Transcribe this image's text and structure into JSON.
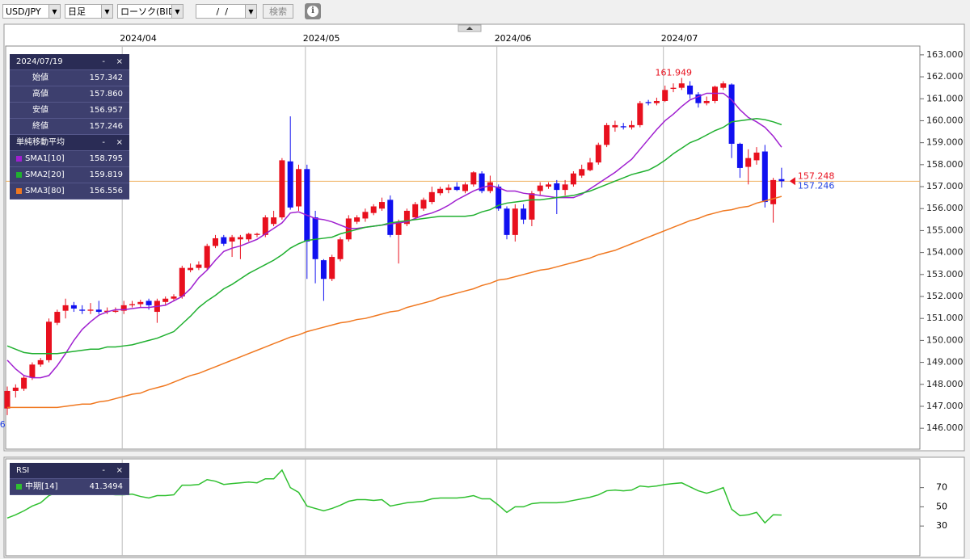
{
  "toolbar": {
    "pair": "USD/JPY",
    "period": "日足",
    "chart_kind": "ローソク(BID)",
    "date": " /  /",
    "search": "検索"
  },
  "info_panel": {
    "date": "2024/07/19",
    "minimize": "-",
    "close": "×",
    "rows": [
      {
        "label": "始値",
        "value": "157.342"
      },
      {
        "label": "高値",
        "value": "157.860"
      },
      {
        "label": "安値",
        "value": "156.957"
      },
      {
        "label": "終値",
        "value": "157.246"
      }
    ],
    "sma_title": "単純移動平均",
    "sma_minimize": "-",
    "sma_close": "×"
  },
  "rsi_panel": {
    "minimize": "-",
    "close": "×"
  },
  "chart_data": [
    {
      "type": "candlestick",
      "categories": [
        null,
        null,
        null,
        null,
        null,
        null,
        null,
        null,
        null,
        null,
        null,
        null,
        null,
        null,
        "2024/04",
        null,
        null,
        null,
        null,
        null,
        null,
        null,
        null,
        null,
        null,
        null,
        null,
        null,
        null,
        null,
        null,
        null,
        null,
        null,
        null,
        null,
        "2024/05",
        null,
        null,
        null,
        null,
        null,
        null,
        null,
        null,
        null,
        null,
        null,
        null,
        null,
        null,
        null,
        null,
        null,
        null,
        null,
        null,
        null,
        null,
        "2024/06",
        null,
        null,
        null,
        null,
        null,
        null,
        null,
        null,
        null,
        null,
        null,
        null,
        null,
        null,
        null,
        null,
        null,
        null,
        null,
        "2024/07",
        null,
        null,
        null,
        null,
        null,
        null,
        null,
        null,
        null,
        null,
        null,
        null,
        null,
        null
      ],
      "open": [
        146.9,
        147.7,
        147.8,
        148.3,
        148.9,
        149.1,
        150.8,
        151.35,
        151.6,
        151.4,
        151.35,
        151.4,
        151.3,
        151.3,
        151.35,
        151.6,
        151.65,
        151.8,
        151.3,
        151.75,
        151.9,
        152.0,
        153.2,
        153.3,
        153.3,
        154.3,
        154.7,
        154.5,
        154.6,
        154.6,
        154.8,
        154.8,
        155.3,
        155.6,
        158.15,
        156.1,
        157.8,
        155.6,
        153.65,
        152.8,
        153.7,
        154.6,
        155.4,
        155.55,
        155.8,
        156.0,
        156.4,
        154.8,
        155.3,
        155.6,
        156.0,
        156.3,
        156.7,
        156.85,
        157.0,
        156.8,
        157.1,
        157.6,
        156.8,
        157.0,
        156.0,
        154.8,
        156.0,
        155.5,
        156.8,
        157.0,
        157.15,
        156.85,
        157.1,
        157.5,
        157.75,
        158.1,
        158.9,
        159.7,
        159.75,
        159.7,
        159.8,
        160.85,
        160.8,
        160.9,
        161.45,
        161.5,
        161.6,
        161.2,
        160.8,
        160.9,
        161.5,
        161.65,
        158.95,
        157.9,
        158.2,
        158.6,
        156.2,
        157.342
      ],
      "high": [
        147.9,
        148.0,
        148.4,
        149.0,
        149.2,
        151.0,
        151.4,
        151.9,
        151.75,
        151.6,
        151.7,
        151.8,
        151.5,
        151.5,
        151.8,
        151.8,
        151.85,
        151.9,
        151.9,
        152.0,
        152.1,
        153.4,
        153.5,
        153.6,
        154.4,
        154.8,
        154.8,
        154.8,
        154.8,
        154.9,
        154.9,
        155.7,
        155.9,
        158.3,
        160.2,
        158.0,
        158.0,
        155.9,
        153.7,
        153.9,
        154.7,
        155.7,
        155.7,
        156.0,
        156.2,
        156.5,
        156.6,
        155.5,
        156.0,
        156.3,
        156.5,
        157.0,
        157.0,
        157.1,
        157.2,
        157.2,
        157.7,
        157.7,
        157.5,
        157.1,
        156.1,
        156.2,
        156.2,
        156.8,
        157.2,
        157.2,
        157.3,
        157.3,
        157.7,
        158.0,
        158.3,
        159.0,
        159.9,
        160.0,
        159.9,
        160.0,
        160.9,
        160.95,
        161.05,
        161.6,
        161.7,
        161.949,
        161.8,
        161.3,
        161.1,
        161.6,
        161.8,
        161.7,
        159.0,
        158.7,
        158.8,
        158.9,
        157.4,
        157.86
      ],
      "low": [
        146.6,
        147.4,
        147.7,
        148.2,
        148.8,
        149.0,
        150.7,
        151.0,
        151.3,
        151.2,
        151.2,
        151.2,
        151.2,
        151.25,
        151.2,
        151.5,
        151.5,
        151.4,
        150.8,
        151.6,
        151.8,
        151.9,
        153.1,
        153.2,
        153.2,
        154.2,
        154.3,
        153.8,
        153.7,
        154.5,
        154.7,
        154.7,
        155.2,
        155.5,
        155.95,
        155.9,
        152.8,
        152.6,
        151.8,
        152.7,
        153.6,
        154.5,
        155.3,
        155.4,
        155.7,
        155.9,
        154.7,
        153.5,
        155.2,
        155.5,
        155.9,
        156.2,
        156.6,
        156.7,
        156.8,
        156.7,
        157.0,
        156.7,
        156.7,
        155.9,
        154.6,
        154.5,
        155.3,
        155.2,
        156.6,
        156.9,
        155.75,
        156.6,
        157.0,
        157.4,
        157.7,
        158.0,
        158.8,
        159.5,
        159.6,
        159.6,
        159.7,
        160.7,
        160.7,
        160.85,
        161.3,
        161.4,
        161.0,
        160.6,
        160.7,
        160.8,
        161.4,
        158.3,
        157.4,
        157.1,
        158.0,
        156.05,
        155.361,
        156.957
      ],
      "close": [
        147.7,
        147.85,
        148.3,
        148.9,
        149.1,
        150.85,
        151.3,
        151.6,
        151.45,
        151.35,
        151.4,
        151.3,
        151.35,
        151.35,
        151.6,
        151.65,
        151.75,
        151.6,
        151.8,
        151.9,
        152.0,
        153.3,
        153.3,
        153.45,
        154.3,
        154.65,
        154.4,
        154.7,
        154.7,
        154.85,
        154.85,
        155.6,
        155.6,
        158.2,
        156.05,
        157.8,
        154.5,
        153.7,
        152.8,
        153.8,
        154.6,
        155.55,
        155.6,
        155.85,
        156.1,
        156.3,
        154.8,
        155.4,
        155.9,
        156.2,
        156.4,
        156.75,
        156.9,
        156.95,
        156.85,
        157.1,
        157.65,
        156.8,
        157.2,
        156.0,
        154.8,
        156.0,
        155.5,
        156.7,
        157.05,
        157.1,
        156.85,
        157.1,
        157.6,
        157.8,
        158.1,
        158.9,
        159.8,
        159.8,
        159.7,
        159.8,
        160.8,
        160.8,
        160.9,
        161.4,
        161.5,
        161.7,
        161.2,
        160.8,
        160.9,
        161.55,
        161.7,
        158.95,
        157.85,
        158.3,
        158.55,
        156.3,
        157.3,
        157.246
      ],
      "up_color": "#e8101e",
      "down_color": "#1010f0",
      "series": [
        {
          "name": "SMA1[10]",
          "color": "#a020d0",
          "values": [
            149.1,
            148.7,
            148.4,
            148.3,
            148.3,
            148.4,
            148.85,
            149.4,
            150.0,
            150.5,
            150.85,
            151.15,
            151.3,
            151.4,
            151.4,
            151.45,
            151.5,
            151.5,
            151.55,
            151.6,
            151.8,
            152.0,
            152.35,
            152.85,
            153.2,
            153.65,
            154.05,
            154.2,
            154.3,
            154.45,
            154.6,
            154.85,
            155.1,
            155.35,
            155.8,
            155.85,
            155.7,
            155.55,
            155.5,
            155.4,
            155.25,
            155.1,
            155.1,
            155.15,
            155.2,
            155.25,
            155.3,
            155.35,
            155.4,
            155.55,
            155.7,
            155.8,
            155.95,
            156.15,
            156.4,
            156.6,
            156.8,
            156.95,
            157.05,
            156.95,
            156.8,
            156.8,
            156.7,
            156.65,
            156.6,
            156.55,
            156.5,
            156.5,
            156.5,
            156.65,
            156.9,
            157.15,
            157.4,
            157.65,
            157.95,
            158.25,
            158.7,
            159.15,
            159.6,
            160.0,
            160.3,
            160.65,
            160.95,
            161.1,
            161.25,
            161.25,
            161.25,
            160.95,
            160.5,
            160.15,
            159.95,
            159.7,
            159.3,
            158.795
          ]
        },
        {
          "name": "SMA2[20]",
          "color": "#20b030",
          "values": [
            149.75,
            149.6,
            149.45,
            149.4,
            149.4,
            149.4,
            149.4,
            149.45,
            149.5,
            149.55,
            149.6,
            149.6,
            149.7,
            149.7,
            149.75,
            149.8,
            149.9,
            150.0,
            150.1,
            150.25,
            150.4,
            150.75,
            151.1,
            151.5,
            151.8,
            152.05,
            152.35,
            152.55,
            152.8,
            153.05,
            153.25,
            153.45,
            153.65,
            153.9,
            154.2,
            154.4,
            154.55,
            154.6,
            154.65,
            154.7,
            154.85,
            154.95,
            155.05,
            155.15,
            155.2,
            155.25,
            155.35,
            155.4,
            155.45,
            155.5,
            155.55,
            155.6,
            155.65,
            155.65,
            155.65,
            155.65,
            155.7,
            155.85,
            155.95,
            156.15,
            156.25,
            156.3,
            156.35,
            156.4,
            156.4,
            156.45,
            156.5,
            156.55,
            156.6,
            156.7,
            156.8,
            156.95,
            157.1,
            157.25,
            157.4,
            157.55,
            157.65,
            157.75,
            157.95,
            158.2,
            158.5,
            158.75,
            159.0,
            159.15,
            159.35,
            159.55,
            159.7,
            159.95,
            160.0,
            160.05,
            160.1,
            160.05,
            159.95,
            159.819
          ]
        },
        {
          "name": "SMA3[80]",
          "color": "#f07820",
          "values": [
            146.95,
            146.95,
            146.95,
            146.95,
            146.95,
            146.95,
            146.95,
            147.0,
            147.05,
            147.1,
            147.1,
            147.2,
            147.25,
            147.35,
            147.45,
            147.55,
            147.6,
            147.75,
            147.85,
            147.95,
            148.1,
            148.25,
            148.4,
            148.5,
            148.65,
            148.8,
            148.95,
            149.1,
            149.25,
            149.4,
            149.55,
            149.7,
            149.85,
            150.0,
            150.15,
            150.25,
            150.4,
            150.5,
            150.6,
            150.7,
            150.8,
            150.85,
            150.95,
            151.0,
            151.1,
            151.2,
            151.3,
            151.35,
            151.5,
            151.6,
            151.7,
            151.8,
            151.95,
            152.05,
            152.15,
            152.25,
            152.35,
            152.5,
            152.6,
            152.75,
            152.8,
            152.9,
            153.0,
            153.1,
            153.2,
            153.25,
            153.35,
            153.45,
            153.55,
            153.65,
            153.75,
            153.9,
            154.0,
            154.1,
            154.25,
            154.4,
            154.55,
            154.7,
            154.85,
            155.0,
            155.15,
            155.3,
            155.45,
            155.55,
            155.7,
            155.8,
            155.9,
            155.95,
            156.05,
            156.1,
            156.25,
            156.35,
            156.45,
            156.556
          ]
        }
      ],
      "ylim": [
        145.05,
        163.4
      ],
      "yticks": [
        {
          "value": 163,
          "label": "163.000"
        },
        {
          "value": 162,
          "label": "162.000"
        },
        {
          "value": 161,
          "label": "161.000"
        },
        {
          "value": 160,
          "label": "160.000"
        },
        {
          "value": 159,
          "label": "159.000"
        },
        {
          "value": 158,
          "label": "158.000"
        },
        {
          "value": 157,
          "label": "157.000"
        },
        {
          "value": 156,
          "label": "156.000"
        },
        {
          "value": 155,
          "label": "155.000"
        },
        {
          "value": 154,
          "label": "154.000"
        },
        {
          "value": 153,
          "label": "153.000"
        },
        {
          "value": 152,
          "label": "152.000"
        },
        {
          "value": 151,
          "label": "151.000"
        },
        {
          "value": 150,
          "label": "150.000"
        },
        {
          "value": 149,
          "label": "149.000"
        },
        {
          "value": 148,
          "label": "148.000"
        },
        {
          "value": 147,
          "label": "147.000"
        },
        {
          "value": 146,
          "label": "146.000"
        }
      ],
      "ask": 157.248,
      "bid": 157.246,
      "ask_color": "#e8101e",
      "bid_color": "#2040e0",
      "bid_line_color": "#f0b060"
    },
    {
      "type": "line",
      "title": "RSI",
      "series": [
        {
          "name": "中期[14]",
          "color": "#30c030",
          "values": [
            38.3,
            41.7,
            45.8,
            50.8,
            54.2,
            61.7,
            65.0,
            66.7,
            65.0,
            64.2,
            65.0,
            64.2,
            63.3,
            62.5,
            62.5,
            63.3,
            60.8,
            59.2,
            61.7,
            61.7,
            62.5,
            72.5,
            72.5,
            73.3,
            78.3,
            76.7,
            73.3,
            74.2,
            75.0,
            75.8,
            75.0,
            79.2,
            79.2,
            88.3,
            70.0,
            65.0,
            50.8,
            48.3,
            45.8,
            48.3,
            51.7,
            55.8,
            57.5,
            57.5,
            56.7,
            57.5,
            50.8,
            52.5,
            54.2,
            55.0,
            55.8,
            58.3,
            59.2,
            59.2,
            59.2,
            60.0,
            61.7,
            58.3,
            58.3,
            51.7,
            44.2,
            50.0,
            50.0,
            53.3,
            54.2,
            54.2,
            54.2,
            55.0,
            56.7,
            58.3,
            60.0,
            62.5,
            66.7,
            67.5,
            66.7,
            67.5,
            71.7,
            70.8,
            71.7,
            73.3,
            74.2,
            75.0,
            70.8,
            66.7,
            64.2,
            66.7,
            70.0,
            47.5,
            40.8,
            41.7,
            44.2,
            33.3,
            41.7,
            41.3494
          ]
        }
      ],
      "ylim": [
        -1,
        100
      ],
      "yticks": [
        70,
        50,
        30
      ]
    }
  ]
}
